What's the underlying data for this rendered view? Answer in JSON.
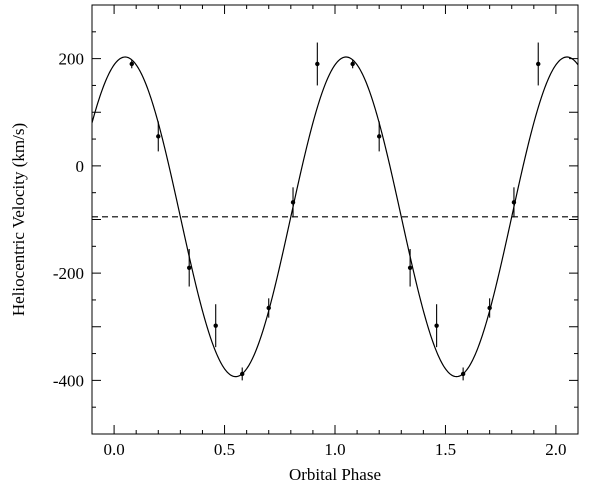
{
  "chart_data": {
    "type": "scatter",
    "title": "",
    "xlabel": "Orbital Phase",
    "ylabel": "Heliocentric Velocity (km/s)",
    "xlim": [
      -0.1,
      2.1
    ],
    "ylim": [
      -500,
      300
    ],
    "xticks": [
      0.0,
      0.5,
      1.0,
      1.5,
      2.0
    ],
    "xtick_labels": [
      "0.0",
      "0.5",
      "1.0",
      "1.5",
      "2.0"
    ],
    "yticks": [
      200,
      0,
      -200,
      -400
    ],
    "ytick_labels": [
      "200",
      "0",
      "-200",
      "-400"
    ],
    "grid": false,
    "legend": "none",
    "reference_line": {
      "y": -95,
      "style": "dashed"
    },
    "fit_curve": {
      "model": "sinusoid",
      "systemic_velocity": -95,
      "semi_amplitude": 298,
      "phase_of_max": 0.05
    },
    "series": [
      {
        "points": [
          {
            "x": 0.08,
            "y": 190,
            "err": 8
          },
          {
            "x": 0.2,
            "y": 55,
            "err": 28
          },
          {
            "x": 0.34,
            "y": -190,
            "err": 35
          },
          {
            "x": 0.46,
            "y": -298,
            "err": 40
          },
          {
            "x": 0.58,
            "y": -388,
            "err": 12
          },
          {
            "x": 0.7,
            "y": -265,
            "err": 18
          },
          {
            "x": 0.81,
            "y": -68,
            "err": 28
          },
          {
            "x": 0.92,
            "y": 190,
            "err": 40
          },
          {
            "x": 1.08,
            "y": 190,
            "err": 8
          },
          {
            "x": 1.2,
            "y": 55,
            "err": 28
          },
          {
            "x": 1.34,
            "y": -190,
            "err": 35
          },
          {
            "x": 1.46,
            "y": -298,
            "err": 40
          },
          {
            "x": 1.58,
            "y": -388,
            "err": 12
          },
          {
            "x": 1.7,
            "y": -265,
            "err": 18
          },
          {
            "x": 1.81,
            "y": -68,
            "err": 28
          },
          {
            "x": 1.92,
            "y": 190,
            "err": 40
          }
        ]
      }
    ]
  }
}
